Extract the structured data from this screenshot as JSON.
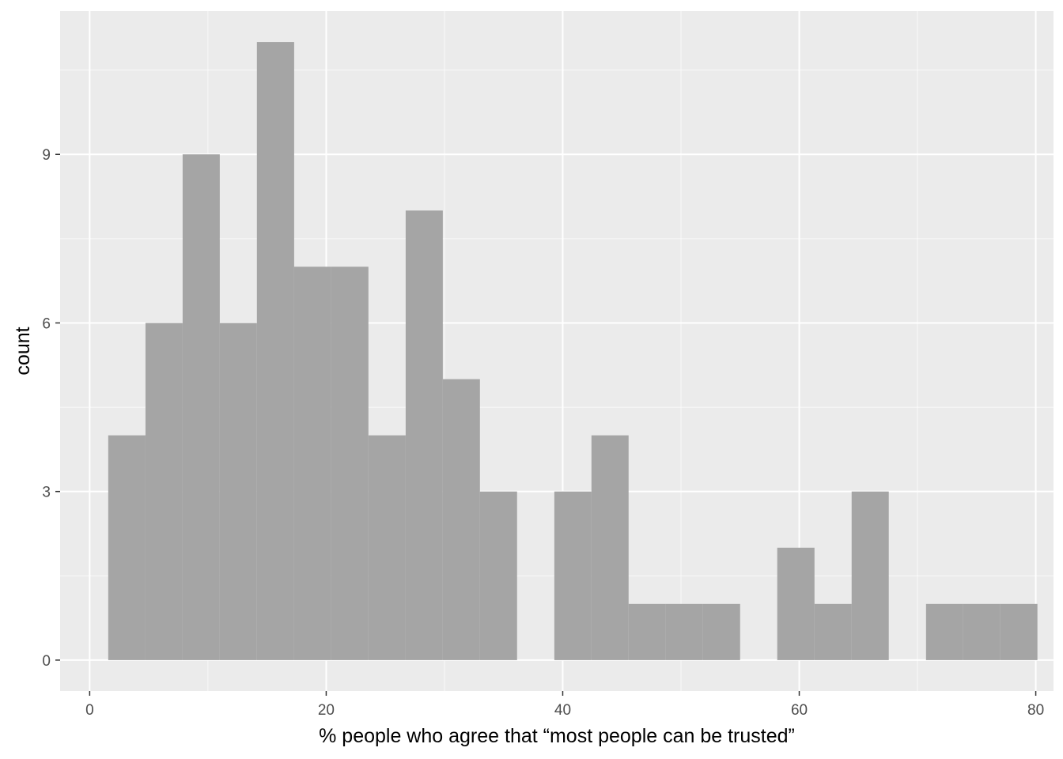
{
  "chart_data": {
    "type": "bar",
    "subtype": "histogram",
    "title": "",
    "xlabel": "% people who agree that “most people can be trusted”",
    "ylabel": "count",
    "xlim": [
      -2.5,
      81.5
    ],
    "ylim": [
      -0.55,
      11.55
    ],
    "x_ticks": [
      0,
      20,
      40,
      60,
      80
    ],
    "x_tick_labels": [
      "0",
      "20",
      "40",
      "60",
      "80"
    ],
    "y_ticks": [
      0,
      3,
      6,
      9
    ],
    "y_tick_labels": [
      "0",
      "3",
      "6",
      "9"
    ],
    "bins": [
      {
        "start": 1.57,
        "end": 4.72,
        "count": 4
      },
      {
        "start": 4.72,
        "end": 7.86,
        "count": 6
      },
      {
        "start": 7.86,
        "end": 11.0,
        "count": 9
      },
      {
        "start": 11.0,
        "end": 14.14,
        "count": 6
      },
      {
        "start": 14.14,
        "end": 17.29,
        "count": 11
      },
      {
        "start": 17.29,
        "end": 20.43,
        "count": 7
      },
      {
        "start": 20.43,
        "end": 23.57,
        "count": 7
      },
      {
        "start": 23.57,
        "end": 26.72,
        "count": 4
      },
      {
        "start": 26.72,
        "end": 29.86,
        "count": 8
      },
      {
        "start": 29.86,
        "end": 33.0,
        "count": 5
      },
      {
        "start": 33.0,
        "end": 36.14,
        "count": 3
      },
      {
        "start": 36.14,
        "end": 39.29,
        "count": 0
      },
      {
        "start": 39.29,
        "end": 42.43,
        "count": 3
      },
      {
        "start": 42.43,
        "end": 45.57,
        "count": 4
      },
      {
        "start": 45.57,
        "end": 48.72,
        "count": 1
      },
      {
        "start": 48.72,
        "end": 51.86,
        "count": 1
      },
      {
        "start": 51.86,
        "end": 55.0,
        "count": 1
      },
      {
        "start": 55.0,
        "end": 58.14,
        "count": 0
      },
      {
        "start": 58.14,
        "end": 61.29,
        "count": 2
      },
      {
        "start": 61.29,
        "end": 64.43,
        "count": 1
      },
      {
        "start": 64.43,
        "end": 67.57,
        "count": 3
      },
      {
        "start": 67.57,
        "end": 70.72,
        "count": 0
      },
      {
        "start": 70.72,
        "end": 73.86,
        "count": 1
      },
      {
        "start": 73.86,
        "end": 77.0,
        "count": 1
      },
      {
        "start": 77.0,
        "end": 80.14,
        "count": 1
      }
    ],
    "grid": true,
    "legend": "none",
    "colors": {
      "panel_background": "#ebebeb",
      "grid_major": "#ffffff",
      "bar_fill": "#a2a2a2",
      "tick_text": "#4d4d4d",
      "tick_mark": "#333333"
    }
  }
}
